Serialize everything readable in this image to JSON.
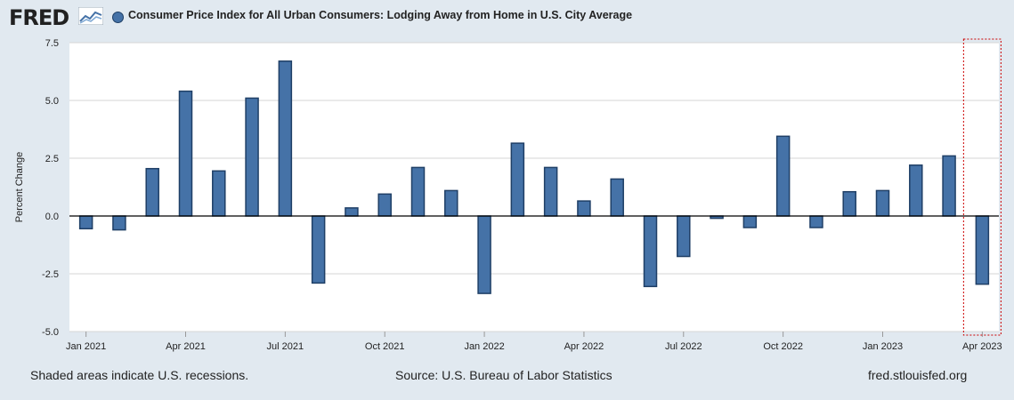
{
  "header": {
    "logo": "FRED",
    "title": "Consumer Price Index for All Urban Consumers: Lodging Away from Home in U.S. City Average"
  },
  "footer": {
    "recessions_note": "Shaded areas indicate U.S. recessions.",
    "source": "Source: U.S. Bureau of Labor Statistics",
    "site": "fred.stlouisfed.org"
  },
  "colors": {
    "bar_fill": "#4572a7",
    "bar_stroke": "#1f3f66",
    "background": "#e1e9f0",
    "highlight_box": "#cc0000"
  },
  "chart_data": {
    "type": "bar",
    "title": "Consumer Price Index for All Urban Consumers: Lodging Away from Home in U.S. City Average",
    "ylabel": "Percent Change",
    "xlabel": "",
    "ylim": [
      -5.0,
      7.5
    ],
    "yticks": [
      "-5.0",
      "-2.5",
      "0.0",
      "2.5",
      "5.0",
      "7.5"
    ],
    "grid": true,
    "categories": [
      "Jan 2021",
      "Feb 2021",
      "Mar 2021",
      "Apr 2021",
      "May 2021",
      "Jun 2021",
      "Jul 2021",
      "Aug 2021",
      "Sep 2021",
      "Oct 2021",
      "Nov 2021",
      "Dec 2021",
      "Jan 2022",
      "Feb 2022",
      "Mar 2022",
      "Apr 2022",
      "May 2022",
      "Jun 2022",
      "Jul 2022",
      "Aug 2022",
      "Sep 2022",
      "Oct 2022",
      "Nov 2022",
      "Dec 2022",
      "Jan 2023",
      "Feb 2023",
      "Mar 2023",
      "Apr 2023"
    ],
    "values": [
      -0.55,
      -0.6,
      2.05,
      5.4,
      1.95,
      5.1,
      6.7,
      -2.9,
      0.35,
      0.95,
      2.1,
      1.1,
      -3.35,
      3.15,
      2.1,
      0.65,
      1.6,
      -3.05,
      -1.75,
      -0.1,
      -0.5,
      3.45,
      -0.5,
      1.05,
      1.1,
      2.2,
      2.6,
      -2.95
    ],
    "xtick_labels": [
      "Jan 2021",
      "Apr 2021",
      "Jul 2021",
      "Oct 2021",
      "Jan 2022",
      "Apr 2022",
      "Jul 2022",
      "Oct 2022",
      "Jan 2023",
      "Apr 2023"
    ],
    "highlight_last": true
  }
}
